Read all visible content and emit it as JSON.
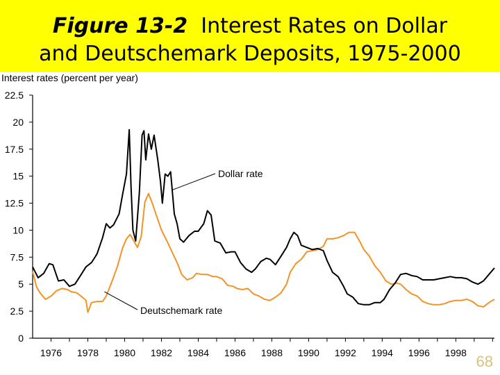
{
  "slide": {
    "figure_label": "Figure 13-2",
    "title_line1_rest": "Interest Rates on Dollar",
    "title_line2": "and Deutschemark Deposits, 1975-2000",
    "number": "68"
  },
  "colors": {
    "title_band": "#ffff00",
    "dollar": "#000000",
    "deutschemark": "#f39325",
    "slide_number": "#d9c27a"
  },
  "chart_data": {
    "type": "line",
    "title": "",
    "ylabel": "Interest rates (percent per year)",
    "xlabel": "",
    "ylim": [
      0,
      22.5
    ],
    "xlim": [
      1975,
      2000.1
    ],
    "yticks": [
      "0",
      "2.5",
      "5",
      "7.5",
      "10",
      "12.5",
      "15",
      "17.5",
      "20",
      "22.5"
    ],
    "xticks": [
      "1976",
      "1978",
      "1980",
      "1982",
      "1984",
      "1986",
      "1988",
      "1990",
      "1992",
      "1994",
      "1996",
      "1998"
    ],
    "grid": false,
    "series": [
      {
        "name": "Dollar rate",
        "color": "#000000",
        "points": [
          [
            1975.0,
            6.6
          ],
          [
            1975.3,
            5.6
          ],
          [
            1975.6,
            6.0
          ],
          [
            1975.9,
            6.9
          ],
          [
            1976.1,
            6.8
          ],
          [
            1976.4,
            5.3
          ],
          [
            1976.7,
            5.4
          ],
          [
            1977.0,
            4.8
          ],
          [
            1977.3,
            5.0
          ],
          [
            1977.6,
            5.8
          ],
          [
            1977.9,
            6.6
          ],
          [
            1978.2,
            7.0
          ],
          [
            1978.5,
            7.8
          ],
          [
            1978.8,
            9.3
          ],
          [
            1979.0,
            10.6
          ],
          [
            1979.2,
            10.2
          ],
          [
            1979.4,
            10.5
          ],
          [
            1979.7,
            11.5
          ],
          [
            1979.9,
            13.4
          ],
          [
            1980.1,
            15.2
          ],
          [
            1980.25,
            19.3
          ],
          [
            1980.35,
            14.0
          ],
          [
            1980.45,
            10.0
          ],
          [
            1980.6,
            9.0
          ],
          [
            1980.8,
            13.5
          ],
          [
            1980.95,
            18.8
          ],
          [
            1981.05,
            19.2
          ],
          [
            1981.15,
            16.5
          ],
          [
            1981.3,
            18.9
          ],
          [
            1981.45,
            17.5
          ],
          [
            1981.6,
            18.8
          ],
          [
            1981.8,
            16.5
          ],
          [
            1981.95,
            14.5
          ],
          [
            1982.05,
            12.5
          ],
          [
            1982.2,
            15.2
          ],
          [
            1982.35,
            15.0
          ],
          [
            1982.5,
            15.4
          ],
          [
            1982.7,
            11.5
          ],
          [
            1982.85,
            10.6
          ],
          [
            1983.0,
            9.2
          ],
          [
            1983.2,
            8.9
          ],
          [
            1983.5,
            9.5
          ],
          [
            1983.8,
            9.9
          ],
          [
            1984.0,
            9.9
          ],
          [
            1984.3,
            10.6
          ],
          [
            1984.5,
            11.8
          ],
          [
            1984.7,
            11.4
          ],
          [
            1984.9,
            9.0
          ],
          [
            1985.2,
            8.8
          ],
          [
            1985.5,
            7.9
          ],
          [
            1985.8,
            8.0
          ],
          [
            1986.0,
            8.0
          ],
          [
            1986.3,
            7.0
          ],
          [
            1986.6,
            6.4
          ],
          [
            1986.9,
            6.1
          ],
          [
            1987.1,
            6.4
          ],
          [
            1987.4,
            7.1
          ],
          [
            1987.7,
            7.4
          ],
          [
            1987.9,
            7.3
          ],
          [
            1988.2,
            6.8
          ],
          [
            1988.5,
            7.6
          ],
          [
            1988.8,
            8.4
          ],
          [
            1989.0,
            9.2
          ],
          [
            1989.2,
            9.8
          ],
          [
            1989.4,
            9.5
          ],
          [
            1989.6,
            8.6
          ],
          [
            1989.9,
            8.4
          ],
          [
            1990.2,
            8.2
          ],
          [
            1990.5,
            8.3
          ],
          [
            1990.8,
            8.1
          ],
          [
            1991.0,
            7.2
          ],
          [
            1991.3,
            6.1
          ],
          [
            1991.6,
            5.7
          ],
          [
            1991.9,
            4.8
          ],
          [
            1992.1,
            4.1
          ],
          [
            1992.4,
            3.8
          ],
          [
            1992.7,
            3.2
          ],
          [
            1993.0,
            3.1
          ],
          [
            1993.3,
            3.1
          ],
          [
            1993.6,
            3.3
          ],
          [
            1993.9,
            3.3
          ],
          [
            1994.1,
            3.6
          ],
          [
            1994.4,
            4.5
          ],
          [
            1994.7,
            5.1
          ],
          [
            1995.0,
            5.9
          ],
          [
            1995.3,
            6.0
          ],
          [
            1995.6,
            5.8
          ],
          [
            1995.9,
            5.7
          ],
          [
            1996.2,
            5.4
          ],
          [
            1996.5,
            5.4
          ],
          [
            1996.8,
            5.4
          ],
          [
            1997.1,
            5.5
          ],
          [
            1997.4,
            5.6
          ],
          [
            1997.7,
            5.7
          ],
          [
            1998.0,
            5.6
          ],
          [
            1998.3,
            5.6
          ],
          [
            1998.6,
            5.5
          ],
          [
            1998.9,
            5.2
          ],
          [
            1999.2,
            5.0
          ],
          [
            1999.5,
            5.3
          ],
          [
            1999.8,
            5.9
          ],
          [
            2000.1,
            6.5
          ]
        ]
      },
      {
        "name": "Deutschemark rate",
        "color": "#f39325",
        "points": [
          [
            1975.0,
            6.2
          ],
          [
            1975.2,
            4.8
          ],
          [
            1975.4,
            4.2
          ],
          [
            1975.7,
            3.6
          ],
          [
            1976.0,
            3.9
          ],
          [
            1976.3,
            4.4
          ],
          [
            1976.6,
            4.6
          ],
          [
            1976.9,
            4.5
          ],
          [
            1977.1,
            4.3
          ],
          [
            1977.4,
            4.2
          ],
          [
            1977.7,
            3.8
          ],
          [
            1977.9,
            3.5
          ],
          [
            1978.0,
            2.4
          ],
          [
            1978.2,
            3.3
          ],
          [
            1978.5,
            3.4
          ],
          [
            1978.8,
            3.4
          ],
          [
            1979.0,
            3.9
          ],
          [
            1979.3,
            5.2
          ],
          [
            1979.6,
            6.6
          ],
          [
            1979.9,
            8.4
          ],
          [
            1980.1,
            9.2
          ],
          [
            1980.3,
            9.6
          ],
          [
            1980.5,
            9.0
          ],
          [
            1980.7,
            8.4
          ],
          [
            1980.9,
            9.4
          ],
          [
            1981.1,
            12.6
          ],
          [
            1981.3,
            13.4
          ],
          [
            1981.5,
            12.5
          ],
          [
            1981.8,
            11.0
          ],
          [
            1982.0,
            10.0
          ],
          [
            1982.3,
            9.0
          ],
          [
            1982.6,
            7.9
          ],
          [
            1982.9,
            6.8
          ],
          [
            1983.1,
            5.9
          ],
          [
            1983.4,
            5.4
          ],
          [
            1983.7,
            5.6
          ],
          [
            1983.9,
            6.0
          ],
          [
            1984.2,
            5.9
          ],
          [
            1984.5,
            5.9
          ],
          [
            1984.8,
            5.7
          ],
          [
            1985.0,
            5.7
          ],
          [
            1985.3,
            5.5
          ],
          [
            1985.6,
            4.9
          ],
          [
            1985.9,
            4.8
          ],
          [
            1986.1,
            4.6
          ],
          [
            1986.4,
            4.5
          ],
          [
            1986.7,
            4.6
          ],
          [
            1987.0,
            4.1
          ],
          [
            1987.3,
            3.9
          ],
          [
            1987.6,
            3.6
          ],
          [
            1987.9,
            3.5
          ],
          [
            1988.2,
            3.8
          ],
          [
            1988.5,
            4.2
          ],
          [
            1988.8,
            5.0
          ],
          [
            1989.0,
            6.1
          ],
          [
            1989.3,
            6.9
          ],
          [
            1989.6,
            7.3
          ],
          [
            1989.9,
            8.0
          ],
          [
            1990.2,
            8.1
          ],
          [
            1990.5,
            8.2
          ],
          [
            1990.8,
            8.5
          ],
          [
            1991.0,
            9.2
          ],
          [
            1991.3,
            9.2
          ],
          [
            1991.6,
            9.3
          ],
          [
            1991.9,
            9.5
          ],
          [
            1992.2,
            9.8
          ],
          [
            1992.5,
            9.8
          ],
          [
            1992.8,
            8.9
          ],
          [
            1993.0,
            8.2
          ],
          [
            1993.3,
            7.6
          ],
          [
            1993.6,
            6.7
          ],
          [
            1993.9,
            6.1
          ],
          [
            1994.2,
            5.3
          ],
          [
            1994.5,
            5.0
          ],
          [
            1994.8,
            5.1
          ],
          [
            1995.0,
            5.0
          ],
          [
            1995.3,
            4.5
          ],
          [
            1995.6,
            4.1
          ],
          [
            1995.9,
            3.9
          ],
          [
            1996.2,
            3.4
          ],
          [
            1996.5,
            3.2
          ],
          [
            1996.8,
            3.1
          ],
          [
            1997.1,
            3.1
          ],
          [
            1997.4,
            3.2
          ],
          [
            1997.7,
            3.4
          ],
          [
            1998.0,
            3.5
          ],
          [
            1998.3,
            3.5
          ],
          [
            1998.6,
            3.6
          ],
          [
            1998.9,
            3.4
          ],
          [
            1999.2,
            3.0
          ],
          [
            1999.5,
            2.9
          ],
          [
            1999.8,
            3.3
          ],
          [
            2000.1,
            3.6
          ]
        ]
      }
    ],
    "annotations": [
      "Dollar rate",
      "Deutschemark rate"
    ]
  }
}
